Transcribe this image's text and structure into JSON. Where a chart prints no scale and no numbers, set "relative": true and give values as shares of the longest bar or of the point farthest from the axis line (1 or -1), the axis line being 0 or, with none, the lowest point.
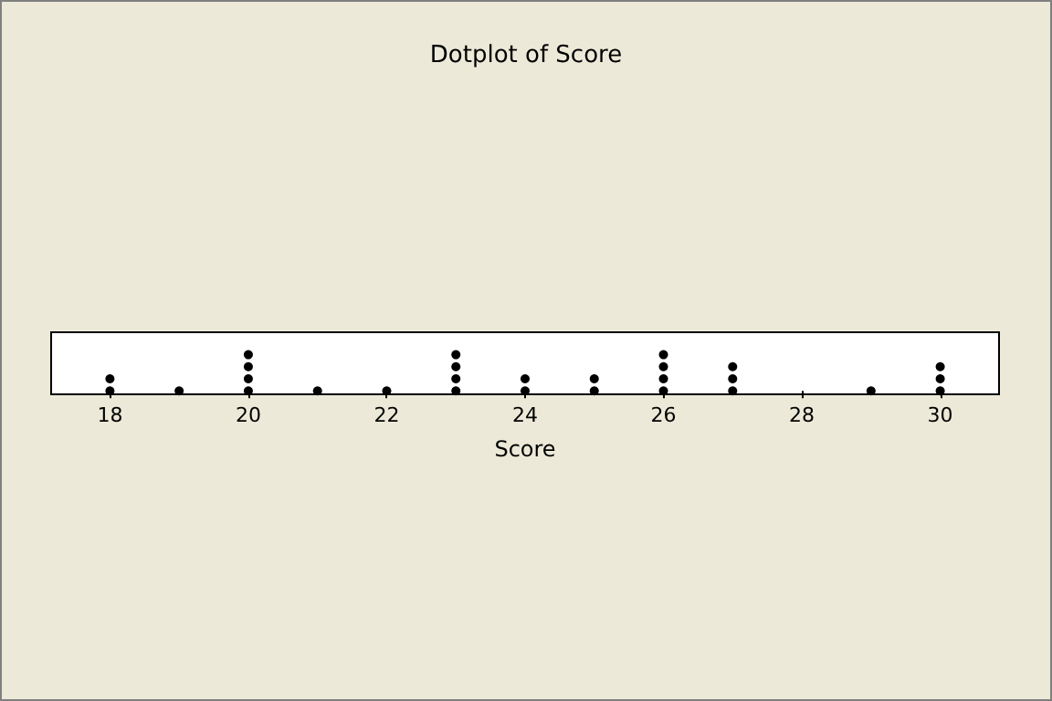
{
  "chart_data": {
    "type": "scatter",
    "title": "Dotplot of Score",
    "xlabel": "Score",
    "relative": true,
    "marker": "circle",
    "grid": false,
    "xlim": [
      17.15,
      30.85
    ],
    "xticks": [
      18,
      20,
      22,
      24,
      26,
      28,
      30
    ],
    "series": [
      {
        "color": "#000000",
        "x": [
          18,
          18,
          19,
          20,
          20,
          20,
          20,
          21,
          22,
          23,
          23,
          23,
          23,
          24,
          24,
          25,
          25,
          26,
          26,
          26,
          26,
          27,
          27,
          27,
          29,
          30,
          30,
          30
        ],
        "values": [
          0,
          0.333,
          0,
          0,
          0.333,
          0.667,
          1,
          0,
          0,
          0,
          0.333,
          0.667,
          1,
          0,
          0.333,
          0,
          0.333,
          0,
          0.333,
          0.667,
          1,
          0,
          0.333,
          0.667,
          0,
          0,
          0.333,
          0.667
        ]
      }
    ]
  }
}
